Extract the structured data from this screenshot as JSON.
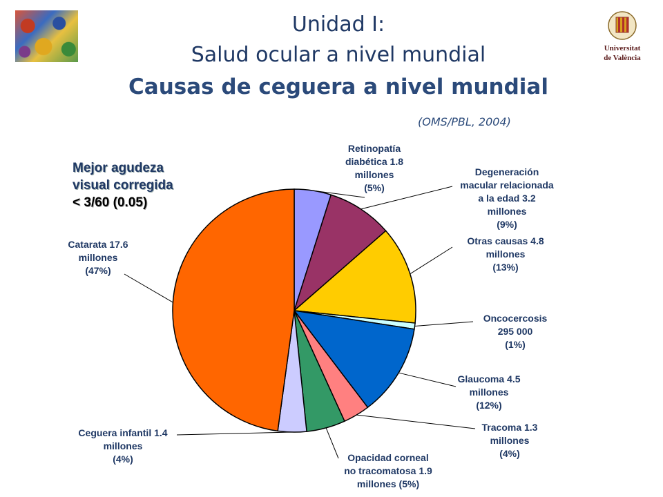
{
  "header": {
    "line1": "Unidad I:",
    "line2": "Salud ocular a nivel mundial",
    "line3": "Causas de ceguera a nivel mundial",
    "source": "(OMS/PBL, 2004)",
    "logo_text": [
      "Universitat",
      "de València"
    ]
  },
  "chart_data": {
    "type": "pie",
    "subtitle": [
      "Mejor agudeza",
      "visual corregida",
      "< 3/60 (0.05)"
    ],
    "slices": [
      {
        "label": [
          "Retinopatía",
          "diabética 1.8",
          "millones",
          "(5%)"
        ],
        "value": 1.8,
        "percent": 5,
        "color": "#9999ff"
      },
      {
        "label": [
          "Degeneración",
          "macular relacionada",
          "a la edad 3.2",
          "millones",
          "(9%)"
        ],
        "value": 3.2,
        "percent": 9,
        "color": "#993366"
      },
      {
        "label": [
          "Otras causas 4.8",
          "millones",
          "(13%)"
        ],
        "value": 4.8,
        "percent": 13,
        "color": "#ffcc00"
      },
      {
        "label": [
          "Oncocercosis",
          "295 000",
          "(1%)"
        ],
        "value": 0.295,
        "percent": 1,
        "color": "#ccffff"
      },
      {
        "label": [
          "Glaucoma 4.5",
          "millones",
          "(12%)"
        ],
        "value": 4.5,
        "percent": 12,
        "color": "#0066cc"
      },
      {
        "label": [
          "Tracoma 1.3",
          "millones",
          "(4%)"
        ],
        "value": 1.3,
        "percent": 4,
        "color": "#ff8080"
      },
      {
        "label": [
          "Opacidad corneal",
          "no tracomatosa 1.9",
          "millones (5%)"
        ],
        "value": 1.9,
        "percent": 5,
        "color": "#339966"
      },
      {
        "label": [
          "Ceguera infantil 1.4",
          "millones",
          "(4%)"
        ],
        "value": 1.4,
        "percent": 4,
        "color": "#ccccff"
      },
      {
        "label": [
          "Catarata 17.6",
          "millones",
          "(47%)"
        ],
        "value": 17.6,
        "percent": 47,
        "color": "#ff6600"
      }
    ]
  }
}
